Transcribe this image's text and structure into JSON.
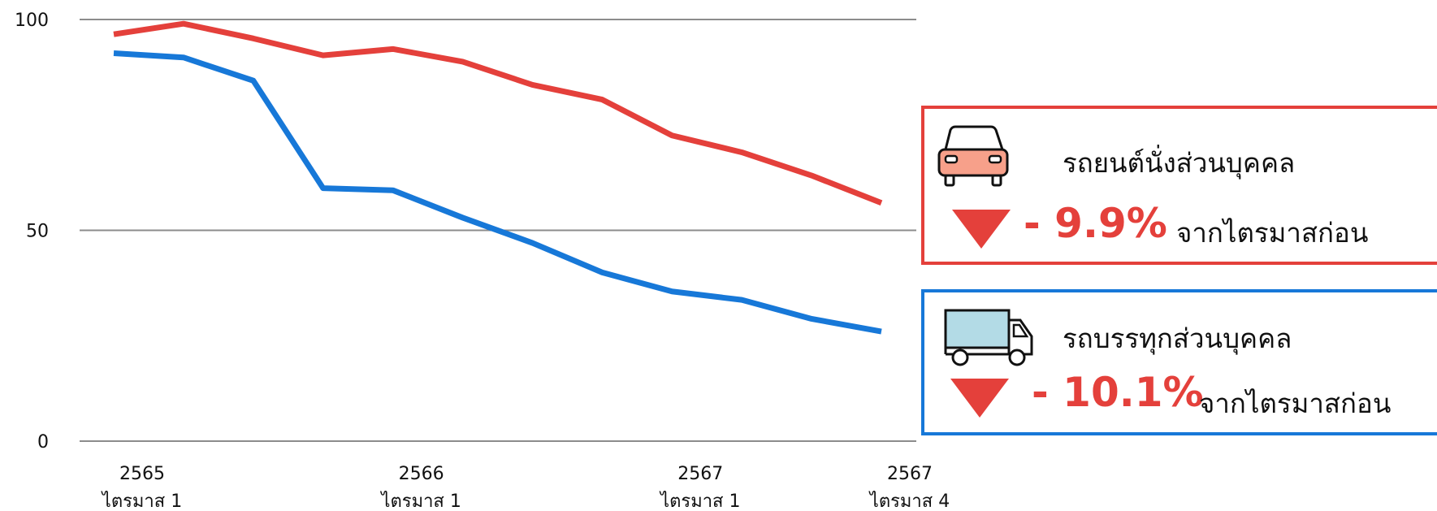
{
  "chart_data": {
    "type": "line",
    "x": [
      1,
      2,
      3,
      4,
      5,
      6,
      7,
      8,
      9,
      10,
      11,
      12
    ],
    "xtick_labels": [
      {
        "x": 1,
        "year": "2565",
        "quarter": "ไตรมาส 1"
      },
      {
        "x": 5,
        "year": "2566",
        "quarter": "ไตรมาส 1"
      },
      {
        "x": 9,
        "year": "2567",
        "quarter": "ไตรมาส 1"
      },
      {
        "x": 12,
        "year": "2567",
        "quarter": "ไตรมาส 4"
      }
    ],
    "yticks": [
      {
        "value": 0,
        "label": "0"
      },
      {
        "value": 50,
        "label": "50"
      },
      {
        "value": 100,
        "label": "100"
      }
    ],
    "ylim": [
      0,
      100
    ],
    "grid": true,
    "series": [
      {
        "name": "รถยนต์นั่งส่วนบุคคล",
        "color": "#e4403b",
        "values": [
          96.5,
          99,
          95.5,
          91.5,
          93,
          90,
          84.5,
          81,
          72.5,
          68.5,
          63,
          56.5
        ]
      },
      {
        "name": "รถบรรทุกส่วนบุคคล",
        "color": "#1778d8",
        "values": [
          92,
          91,
          85.5,
          60,
          59.5,
          53,
          47,
          40,
          35.5,
          33.5,
          29,
          26
        ]
      }
    ]
  },
  "legend": {
    "car": {
      "icon": "car-icon",
      "title": "รถยนต์นั่งส่วนบุคคล",
      "change": "- 9.9%",
      "suffix": "จากไตรมาสก่อน",
      "border_color": "#e4403b"
    },
    "truck": {
      "icon": "truck-icon",
      "title": "รถบรรทุกส่วนบุคคล",
      "change": "- 10.1%",
      "suffix": "จากไตรมาสก่อน",
      "border_color": "#1778d8"
    }
  }
}
